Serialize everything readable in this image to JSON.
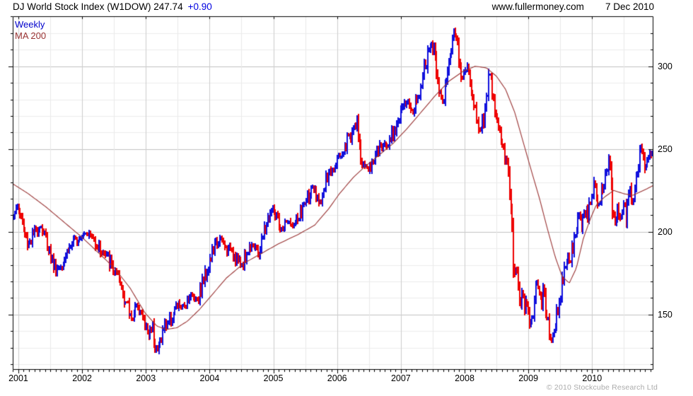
{
  "header": {
    "title": "DJ World Stock Index (W1DOW) 247.74",
    "change": "+0.90",
    "site": "www.fullermoney.com",
    "date": "7 Dec 2010"
  },
  "legend": {
    "series": "Weekly",
    "ma": "MA 200"
  },
  "footer": {
    "copyright": "© 2010 Stockcube Research Ltd"
  },
  "chart_data": {
    "type": "bar",
    "subtype": "weekly-ohlc-bars-with-ma",
    "title": "DJ World Stock Index (W1DOW)",
    "last_close": 247.74,
    "change": 0.9,
    "weeks": 516,
    "ylim": [
      116.6,
      330.2
    ],
    "y_ticks_major": [
      150,
      200,
      250,
      300
    ],
    "y_minor_step": 10,
    "x_years": [
      "2001",
      "2002",
      "2003",
      "2004",
      "2005",
      "2006",
      "2007",
      "2008",
      "2009",
      "2010"
    ],
    "x_domain": {
      "start_year_frac": 0.0088,
      "year_step_frac": 0.0995
    },
    "legend_position": "top-left",
    "grid": true,
    "close_anchors": [
      [
        0.0,
        211
      ],
      [
        0.0055,
        215
      ],
      [
        0.011,
        210
      ],
      [
        0.0166,
        199
      ],
      [
        0.0221,
        192
      ],
      [
        0.0276,
        196
      ],
      [
        0.0353,
        201
      ],
      [
        0.0419,
        204
      ],
      [
        0.0486,
        198
      ],
      [
        0.0552,
        190
      ],
      [
        0.0607,
        182
      ],
      [
        0.0662,
        177
      ],
      [
        0.0717,
        179
      ],
      [
        0.0773,
        184
      ],
      [
        0.085,
        189
      ],
      [
        0.0927,
        193
      ],
      [
        0.1004,
        196
      ],
      [
        0.1082,
        199
      ],
      [
        0.1148,
        200
      ],
      [
        0.1214,
        197
      ],
      [
        0.128,
        194
      ],
      [
        0.1347,
        190
      ],
      [
        0.1424,
        186
      ],
      [
        0.149,
        183
      ],
      [
        0.1556,
        177
      ],
      [
        0.1623,
        172
      ],
      [
        0.1689,
        166
      ],
      [
        0.1744,
        159
      ],
      [
        0.1799,
        152
      ],
      [
        0.1854,
        147
      ],
      [
        0.1899,
        153
      ],
      [
        0.1954,
        155
      ],
      [
        0.2009,
        149
      ],
      [
        0.2064,
        143
      ],
      [
        0.2119,
        137
      ],
      [
        0.2163,
        145
      ],
      [
        0.2208,
        133
      ],
      [
        0.2252,
        128
      ],
      [
        0.2296,
        135
      ],
      [
        0.234,
        141
      ],
      [
        0.2395,
        145
      ],
      [
        0.245,
        147
      ],
      [
        0.2517,
        152
      ],
      [
        0.2583,
        156
      ],
      [
        0.2649,
        154
      ],
      [
        0.2715,
        159
      ],
      [
        0.2781,
        162
      ],
      [
        0.2848,
        159
      ],
      [
        0.2914,
        164
      ],
      [
        0.298,
        172
      ],
      [
        0.3046,
        180
      ],
      [
        0.3113,
        188
      ],
      [
        0.3179,
        193
      ],
      [
        0.3234,
        196
      ],
      [
        0.3289,
        192
      ],
      [
        0.3344,
        188
      ],
      [
        0.34,
        191
      ],
      [
        0.3455,
        186
      ],
      [
        0.351,
        183
      ],
      [
        0.3565,
        180
      ],
      [
        0.362,
        184
      ],
      [
        0.3675,
        189
      ],
      [
        0.3731,
        193
      ],
      [
        0.3786,
        190
      ],
      [
        0.3841,
        186
      ],
      [
        0.3896,
        196
      ],
      [
        0.3951,
        204
      ],
      [
        0.4007,
        210
      ],
      [
        0.4062,
        214
      ],
      [
        0.4117,
        208
      ],
      [
        0.4172,
        200
      ],
      [
        0.4227,
        203
      ],
      [
        0.4283,
        207
      ],
      [
        0.4338,
        204
      ],
      [
        0.4393,
        204
      ],
      [
        0.4448,
        208
      ],
      [
        0.4503,
        212
      ],
      [
        0.4558,
        217
      ],
      [
        0.4614,
        222
      ],
      [
        0.4669,
        226
      ],
      [
        0.4724,
        222
      ],
      [
        0.4779,
        218
      ],
      [
        0.4834,
        222
      ],
      [
        0.489,
        229
      ],
      [
        0.4945,
        235
      ],
      [
        0.5,
        240
      ],
      [
        0.5055,
        244
      ],
      [
        0.511,
        246
      ],
      [
        0.5166,
        250
      ],
      [
        0.5221,
        255
      ],
      [
        0.5276,
        259
      ],
      [
        0.5331,
        263
      ],
      [
        0.5375,
        265
      ],
      [
        0.5419,
        252
      ],
      [
        0.5464,
        237
      ],
      [
        0.5507,
        241
      ],
      [
        0.5552,
        237
      ],
      [
        0.5596,
        240
      ],
      [
        0.564,
        245
      ],
      [
        0.5684,
        248
      ],
      [
        0.574,
        251
      ],
      [
        0.5795,
        252
      ],
      [
        0.585,
        254
      ],
      [
        0.5905,
        258
      ],
      [
        0.596,
        262
      ],
      [
        0.6015,
        267
      ],
      [
        0.6071,
        271
      ],
      [
        0.6126,
        276
      ],
      [
        0.6181,
        280
      ],
      [
        0.6214,
        275
      ],
      [
        0.6247,
        271
      ],
      [
        0.6291,
        278
      ],
      [
        0.6335,
        284
      ],
      [
        0.638,
        291
      ],
      [
        0.6424,
        297
      ],
      [
        0.6468,
        303
      ],
      [
        0.6512,
        309
      ],
      [
        0.6545,
        314
      ],
      [
        0.6578,
        309
      ],
      [
        0.6611,
        303
      ],
      [
        0.6645,
        293
      ],
      [
        0.6678,
        283
      ],
      [
        0.6711,
        277
      ],
      [
        0.6744,
        283
      ],
      [
        0.6777,
        292
      ],
      [
        0.681,
        301
      ],
      [
        0.6843,
        310
      ],
      [
        0.6877,
        317
      ],
      [
        0.691,
        321
      ],
      [
        0.6943,
        316
      ],
      [
        0.6976,
        305
      ],
      [
        0.7009,
        297
      ],
      [
        0.7042,
        294
      ],
      [
        0.7075,
        297
      ],
      [
        0.7108,
        301
      ],
      [
        0.7141,
        293
      ],
      [
        0.7174,
        285
      ],
      [
        0.7208,
        277
      ],
      [
        0.7241,
        270
      ],
      [
        0.7274,
        264
      ],
      [
        0.7307,
        260
      ],
      [
        0.734,
        266
      ],
      [
        0.7373,
        272
      ],
      [
        0.7406,
        283
      ],
      [
        0.7439,
        292
      ],
      [
        0.7472,
        296
      ],
      [
        0.7506,
        282
      ],
      [
        0.7539,
        272
      ],
      [
        0.7572,
        265
      ],
      [
        0.7605,
        259
      ],
      [
        0.7638,
        255
      ],
      [
        0.7671,
        251
      ],
      [
        0.7704,
        244
      ],
      [
        0.7737,
        237
      ],
      [
        0.777,
        225
      ],
      [
        0.7804,
        200
      ],
      [
        0.7837,
        172
      ],
      [
        0.787,
        180
      ],
      [
        0.7903,
        165
      ],
      [
        0.7936,
        157
      ],
      [
        0.7969,
        162
      ],
      [
        0.8002,
        152
      ],
      [
        0.8035,
        156
      ],
      [
        0.8068,
        146
      ],
      [
        0.8102,
        143
      ],
      [
        0.8135,
        153
      ],
      [
        0.8168,
        163
      ],
      [
        0.8201,
        168
      ],
      [
        0.8234,
        162
      ],
      [
        0.8267,
        157
      ],
      [
        0.83,
        164
      ],
      [
        0.8333,
        154
      ],
      [
        0.8366,
        147
      ],
      [
        0.84,
        139
      ],
      [
        0.8433,
        134
      ],
      [
        0.8466,
        141
      ],
      [
        0.8499,
        149
      ],
      [
        0.8532,
        157
      ],
      [
        0.8565,
        165
      ],
      [
        0.8598,
        173
      ],
      [
        0.8631,
        180
      ],
      [
        0.8664,
        185
      ],
      [
        0.8698,
        181
      ],
      [
        0.8731,
        188
      ],
      [
        0.8764,
        193
      ],
      [
        0.8797,
        199
      ],
      [
        0.883,
        204
      ],
      [
        0.8863,
        208
      ],
      [
        0.8896,
        203
      ],
      [
        0.8929,
        209
      ],
      [
        0.8962,
        214
      ],
      [
        0.8996,
        210
      ],
      [
        0.9029,
        218
      ],
      [
        0.9062,
        225
      ],
      [
        0.9095,
        231
      ],
      [
        0.9128,
        224
      ],
      [
        0.9161,
        216
      ],
      [
        0.9194,
        221
      ],
      [
        0.9227,
        227
      ],
      [
        0.926,
        232
      ],
      [
        0.9294,
        236
      ],
      [
        0.9327,
        241
      ],
      [
        0.936,
        228
      ],
      [
        0.9393,
        206
      ],
      [
        0.9426,
        210
      ],
      [
        0.9459,
        215
      ],
      [
        0.9492,
        207
      ],
      [
        0.9525,
        212
      ],
      [
        0.9558,
        216
      ],
      [
        0.9592,
        209
      ],
      [
        0.9625,
        222
      ],
      [
        0.9658,
        226
      ],
      [
        0.9691,
        216
      ],
      [
        0.9724,
        225
      ],
      [
        0.9757,
        234
      ],
      [
        0.979,
        243
      ],
      [
        0.9823,
        250
      ],
      [
        0.9856,
        246
      ],
      [
        0.989,
        239
      ],
      [
        0.9923,
        244
      ],
      [
        1.0,
        248
      ]
    ],
    "ma_anchors": [
      [
        0.0,
        229
      ],
      [
        0.0243,
        223
      ],
      [
        0.0519,
        215
      ],
      [
        0.0795,
        206
      ],
      [
        0.1071,
        197
      ],
      [
        0.1347,
        187
      ],
      [
        0.1589,
        178
      ],
      [
        0.1832,
        166
      ],
      [
        0.2064,
        151
      ],
      [
        0.2252,
        143
      ],
      [
        0.2395,
        141
      ],
      [
        0.2561,
        142
      ],
      [
        0.2726,
        146
      ],
      [
        0.2914,
        153
      ],
      [
        0.3113,
        162
      ],
      [
        0.3333,
        172
      ],
      [
        0.3609,
        181
      ],
      [
        0.3885,
        187
      ],
      [
        0.4161,
        193
      ],
      [
        0.4437,
        198
      ],
      [
        0.4713,
        204
      ],
      [
        0.4934,
        214
      ],
      [
        0.5099,
        223
      ],
      [
        0.532,
        233
      ],
      [
        0.5486,
        239
      ],
      [
        0.5706,
        246
      ],
      [
        0.5927,
        253
      ],
      [
        0.6148,
        262
      ],
      [
        0.6369,
        272
      ],
      [
        0.6589,
        282
      ],
      [
        0.681,
        291
      ],
      [
        0.7031,
        297
      ],
      [
        0.7219,
        300
      ],
      [
        0.7395,
        299
      ],
      [
        0.755,
        294
      ],
      [
        0.7693,
        286
      ],
      [
        0.7837,
        272
      ],
      [
        0.7969,
        254
      ],
      [
        0.8102,
        236
      ],
      [
        0.8223,
        220
      ],
      [
        0.8344,
        202
      ],
      [
        0.8466,
        185
      ],
      [
        0.8576,
        173
      ],
      [
        0.8687,
        169
      ],
      [
        0.8797,
        178
      ],
      [
        0.8907,
        196
      ],
      [
        0.9018,
        208
      ],
      [
        0.9106,
        216
      ],
      [
        0.9238,
        221
      ],
      [
        0.9381,
        225
      ],
      [
        0.9536,
        223
      ],
      [
        0.968,
        222
      ],
      [
        0.979,
        224
      ],
      [
        0.9901,
        226
      ],
      [
        1.0,
        228
      ]
    ],
    "style": {
      "up_color": "#1010dd",
      "down_color": "#ee0000",
      "ma_color": "#993333",
      "grid_minor": "#ededed",
      "grid_major": "#c2c2c2",
      "grid_vert_half": "#e9e9e9",
      "grid_vert_year": "#cdcdcd",
      "border": "#000000",
      "background": "#ffffff"
    }
  }
}
